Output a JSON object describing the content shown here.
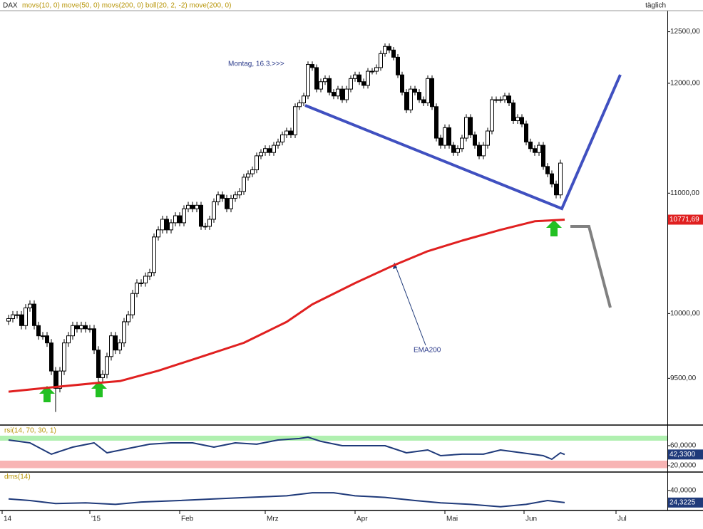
{
  "chart_data": [
    {
      "type": "candlestick",
      "title": "DAX",
      "subtitle": "movs(10, 0) move(50, 0) movs(200, 0) boll(20, 2, -2) move(200, 0)",
      "period": "täglich",
      "open": [
        9940,
        9960,
        9990,
        9990,
        9905,
        10045,
        10075,
        9905,
        9825,
        9825,
        9770,
        9555,
        9425,
        9555,
        9770,
        9825,
        9905,
        9880,
        9905,
        9880,
        9880,
        9715,
        9505,
        9530,
        9665,
        9825,
        9715,
        9770,
        9935,
        9990,
        10160,
        10245,
        10245,
        10300,
        10330,
        10625,
        10685,
        10775,
        10685,
        10745,
        10805,
        10745,
        10865,
        10895,
        10865,
        10895,
        10715,
        10715,
        10775,
        10925,
        10985,
        10955,
        10865,
        10955,
        10985,
        11015,
        11140,
        11170,
        11205,
        11330,
        11360,
        11395,
        11360,
        11425,
        11455,
        11520,
        11555,
        11520,
        11780,
        11815,
        11880,
        12180,
        12150,
        11945,
        12015,
        12045,
        11915,
        11880,
        11945,
        11845,
        11945,
        12045,
        12080,
        12015,
        11980,
        12115,
        12115,
        12150,
        12285,
        12355,
        12320,
        12250,
        12080,
        11915,
        11750,
        11945,
        11915,
        11845,
        11815,
        12045,
        11780,
        11490,
        11425,
        11585,
        11425,
        11360,
        11395,
        11490,
        11680,
        11520,
        11425,
        11330,
        11425,
        11555,
        11845,
        11845,
        11845,
        11880,
        11815,
        11650,
        11680,
        11620,
        11455,
        11395,
        11360,
        11425,
        11235,
        11170,
        11080,
        10985
      ],
      "high": [
        9990,
        10020,
        10020,
        10020,
        10075,
        10105,
        10105,
        9935,
        9855,
        9855,
        9800,
        9585,
        9585,
        9800,
        9855,
        9935,
        9935,
        9935,
        9935,
        9910,
        9910,
        9745,
        9560,
        9695,
        9855,
        9855,
        9800,
        9965,
        10020,
        10190,
        10275,
        10275,
        10330,
        10360,
        10655,
        10715,
        10805,
        10805,
        10775,
        10835,
        10835,
        10895,
        10925,
        10925,
        10925,
        10925,
        10745,
        10805,
        10955,
        11015,
        11015,
        10985,
        10985,
        11015,
        11045,
        11170,
        11200,
        11235,
        11360,
        11390,
        11425,
        11425,
        11455,
        11485,
        11550,
        11585,
        11585,
        11810,
        11845,
        11910,
        12210,
        12210,
        12180,
        12045,
        12075,
        12075,
        11945,
        11975,
        11975,
        11975,
        12075,
        12110,
        12110,
        12045,
        12145,
        12145,
        12180,
        12315,
        12385,
        12385,
        12350,
        12280,
        12110,
        11945,
        11975,
        11975,
        11945,
        11875,
        12075,
        12075,
        11810,
        11520,
        11615,
        11615,
        11455,
        11425,
        11520,
        11710,
        11710,
        11550,
        11455,
        11455,
        11585,
        11875,
        11875,
        11875,
        11910,
        11910,
        11845,
        11710,
        11710,
        11650,
        11485,
        11425,
        11455,
        11455,
        11265,
        11200,
        11110,
        11295
      ],
      "low": [
        9910,
        9930,
        9960,
        9875,
        9875,
        10015,
        9875,
        9795,
        9795,
        9740,
        9525,
        9250,
        9395,
        9525,
        9740,
        9795,
        9850,
        9850,
        9850,
        9850,
        9685,
        9475,
        9475,
        9500,
        9635,
        9685,
        9685,
        9740,
        9905,
        9960,
        10130,
        10215,
        10215,
        10270,
        10300,
        10595,
        10655,
        10655,
        10655,
        10715,
        10715,
        10715,
        10835,
        10835,
        10835,
        10685,
        10685,
        10685,
        10745,
        10895,
        10925,
        10835,
        10835,
        10925,
        10955,
        10985,
        11110,
        11140,
        11175,
        11300,
        11330,
        11330,
        11330,
        11395,
        11425,
        11490,
        11490,
        11490,
        11750,
        11785,
        11850,
        12120,
        11915,
        11915,
        11985,
        11885,
        11850,
        11850,
        11815,
        11815,
        11915,
        12015,
        11985,
        11950,
        11950,
        12085,
        12085,
        12120,
        12255,
        12290,
        12220,
        12050,
        11885,
        11720,
        11720,
        11885,
        11815,
        11785,
        11785,
        11750,
        11460,
        11395,
        11395,
        11395,
        11330,
        11330,
        11365,
        11460,
        11490,
        11395,
        11300,
        11300,
        11395,
        11525,
        11815,
        11815,
        11815,
        11785,
        11620,
        11620,
        11590,
        11425,
        11365,
        11330,
        11330,
        11205,
        11140,
        11050,
        10955,
        10955
      ],
      "close": [
        9960,
        9990,
        9990,
        9905,
        10045,
        10075,
        9905,
        9825,
        9825,
        9770,
        9555,
        9425,
        9555,
        9770,
        9825,
        9905,
        9880,
        9905,
        9880,
        9880,
        9715,
        9505,
        9530,
        9665,
        9825,
        9715,
        9770,
        9935,
        9990,
        10160,
        10245,
        10245,
        10300,
        10330,
        10625,
        10685,
        10775,
        10685,
        10745,
        10805,
        10745,
        10865,
        10895,
        10865,
        10895,
        10715,
        10715,
        10775,
        10925,
        10985,
        10955,
        10865,
        10955,
        10985,
        11015,
        11140,
        11170,
        11205,
        11330,
        11360,
        11395,
        11360,
        11425,
        11455,
        11520,
        11555,
        11520,
        11780,
        11815,
        11880,
        12180,
        12150,
        11945,
        12015,
        12045,
        11915,
        11880,
        11945,
        11845,
        11945,
        12045,
        12080,
        12015,
        11980,
        12115,
        12115,
        12150,
        12285,
        12355,
        12320,
        12250,
        12080,
        11915,
        11750,
        11945,
        11915,
        11845,
        11815,
        12045,
        11780,
        11490,
        11425,
        11585,
        11425,
        11360,
        11395,
        11490,
        11680,
        11520,
        11425,
        11330,
        11425,
        11555,
        11845,
        11845,
        11845,
        11880,
        11815,
        11650,
        11680,
        11620,
        11455,
        11395,
        11360,
        11425,
        11235,
        11170,
        11080,
        10985,
        11265
      ],
      "series": [
        {
          "name": "EMA200",
          "color": "#e02020",
          "x": [
            0,
            8,
            20,
            26,
            35,
            45,
            55,
            65,
            71,
            81,
            90,
            98,
            106,
            115,
            123,
            130
          ],
          "values": [
            9400,
            9426,
            9463,
            9479,
            9557,
            9663,
            9771,
            9934,
            10073,
            10244,
            10389,
            10506,
            10594,
            10685,
            10758,
            10771.69
          ],
          "value_labels": [
            null,
            null,
            null,
            null,
            null,
            null,
            null,
            null,
            null,
            null,
            null,
            null,
            null,
            null,
            null,
            "10771,69"
          ]
        }
      ],
      "annotations": [
        "Montag, 16.3.>>>",
        "EMA200"
      ],
      "log_scale": true,
      "xlim": [
        -2,
        154
      ],
      "xticks": [
        {
          "value": -1.5,
          "label": "14"
        },
        {
          "value": 19,
          "label": "'15"
        },
        {
          "value": 40,
          "label": "Feb"
        },
        {
          "value": 60,
          "label": "Mrz"
        },
        {
          "value": 81,
          "label": "Apr"
        },
        {
          "value": 102,
          "label": "Mai"
        },
        {
          "value": 120.5,
          "label": "Jun"
        },
        {
          "value": 142,
          "label": "Jul"
        }
      ],
      "ylim": [
        9160,
        12660
      ],
      "yticks": [
        {
          "value": 9500,
          "label": "9500,00"
        },
        {
          "value": 10000,
          "label": "10000,00"
        },
        {
          "value": 11000,
          "label": "11000,00"
        },
        {
          "value": 12000,
          "label": "12000,00"
        },
        {
          "value": 12500,
          "label": "12500,00"
        }
      ]
    },
    {
      "type": "line",
      "title": "rsi(14, 70, 30, 1)",
      "series": [
        {
          "color": "#1f3a7a",
          "x": [
            0,
            5,
            10,
            15,
            20,
            23,
            28,
            33,
            38,
            43,
            48,
            53,
            58,
            63,
            68,
            70,
            73,
            78,
            83,
            88,
            93,
            98,
            101,
            106,
            111,
            115,
            120,
            125,
            127,
            129,
            130
          ],
          "values": [
            71.4,
            65.7,
            42.9,
            57.1,
            65.7,
            45.7,
            54.3,
            62.9,
            65.7,
            65.7,
            57.1,
            65.7,
            62.9,
            71.4,
            74.3,
            77.1,
            68.6,
            60,
            60,
            60,
            45.7,
            51.4,
            40,
            42.9,
            42.9,
            51.4,
            45.7,
            40,
            32.9,
            45.7,
            42.33
          ],
          "value_labels": [
            null,
            null,
            null,
            null,
            null,
            null,
            null,
            null,
            null,
            null,
            null,
            null,
            null,
            null,
            null,
            null,
            null,
            null,
            null,
            null,
            null,
            null,
            null,
            null,
            null,
            null,
            null,
            null,
            null,
            null,
            "42,3300"
          ]
        }
      ],
      "bands": [
        {
          "from": 70,
          "to": 80,
          "color": "#b0f0b0"
        },
        {
          "from": 15,
          "to": 30,
          "color": "#f8b4b4"
        }
      ],
      "xlim": [
        -2,
        154
      ],
      "ylim": [
        8.6,
        97
      ],
      "yticks": [
        {
          "value": 20,
          "label": "20,0000"
        },
        {
          "value": 60,
          "label": "60,0000"
        }
      ]
    },
    {
      "type": "line",
      "title": "dms(14)",
      "series": [
        {
          "color": "#1f3a7a",
          "x": [
            0,
            5,
            11,
            18,
            25,
            31,
            40,
            48,
            56,
            65,
            71,
            76,
            81,
            88,
            95,
            101,
            108,
            115,
            121,
            126,
            130
          ],
          "values": [
            29,
            27,
            23,
            24,
            22,
            25,
            27,
            29,
            31,
            33,
            37,
            37,
            33,
            31,
            27,
            24,
            22,
            19,
            22,
            27,
            24.3225
          ],
          "value_labels": [
            null,
            null,
            null,
            null,
            null,
            null,
            null,
            null,
            null,
            null,
            null,
            null,
            null,
            null,
            null,
            null,
            null,
            null,
            null,
            null,
            "24,3225"
          ]
        }
      ],
      "xlim": [
        -2,
        154
      ],
      "ylim": [
        15,
        61
      ],
      "yticks": [
        {
          "value": 40,
          "label": "40,0000"
        }
      ]
    }
  ]
}
